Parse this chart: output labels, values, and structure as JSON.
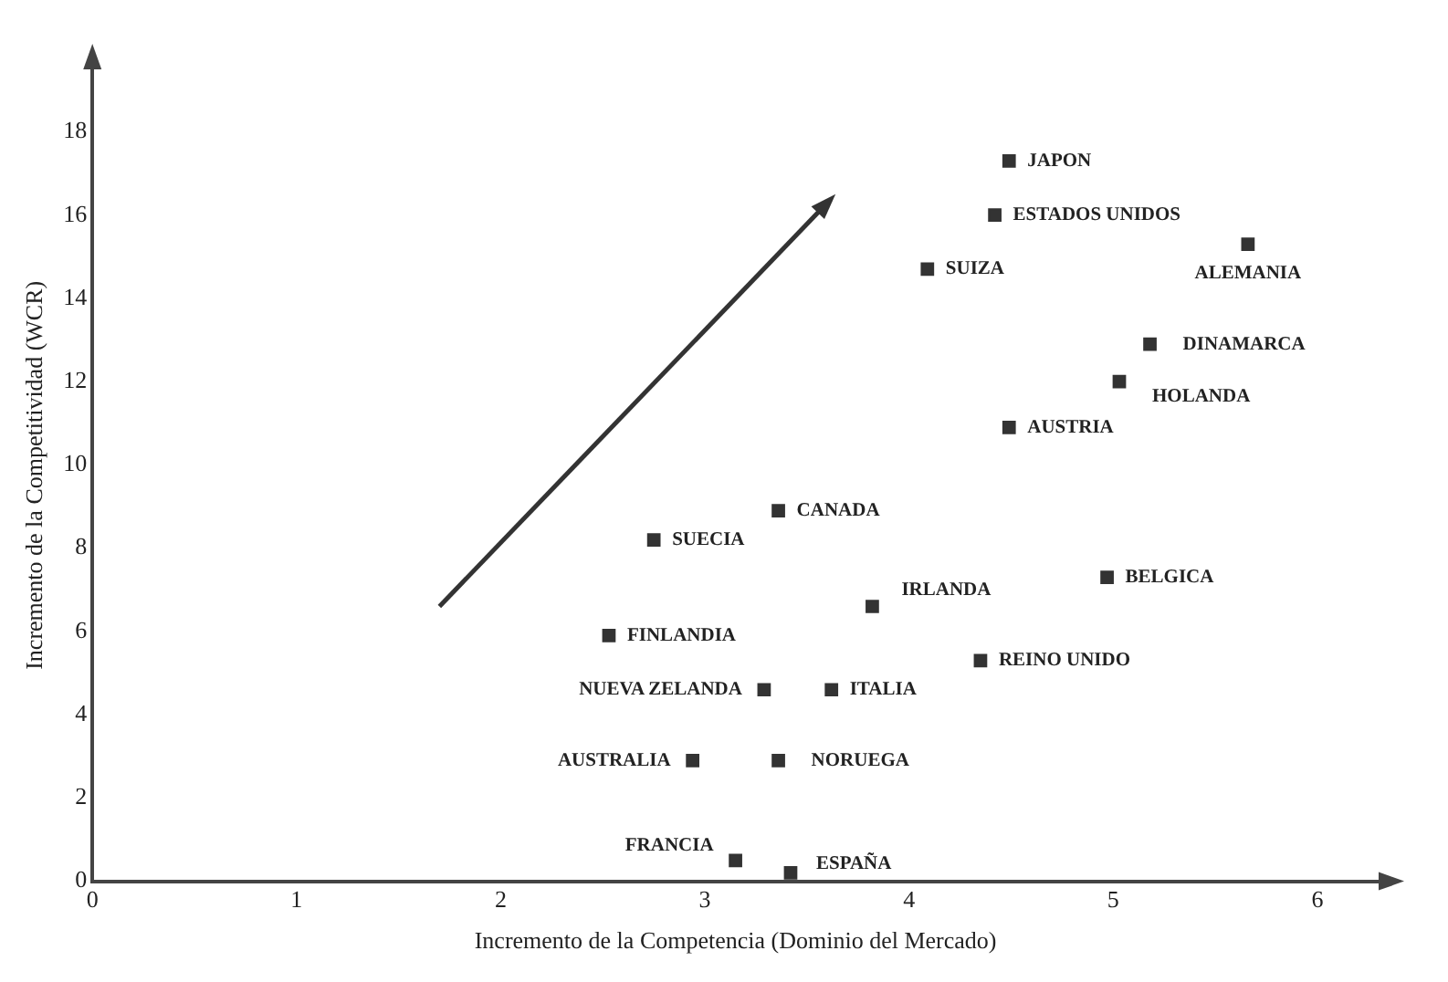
{
  "chart_data": {
    "type": "scatter",
    "xlabel": "Incremento de la Competencia (Dominio del Mercado)",
    "ylabel": "Incremento de la Competitividad (WCR)",
    "xlim": [
      0,
      6.3
    ],
    "xticks": [
      0,
      1,
      2,
      3,
      4,
      5,
      6
    ],
    "ylim": [
      0,
      19.5
    ],
    "yticks": [
      0,
      2,
      4,
      6,
      8,
      10,
      12,
      14,
      16,
      18
    ],
    "grid": false,
    "legend": false,
    "marker": "square",
    "series": [
      {
        "name": "JAPON",
        "color": "#333333",
        "x": [
          4.49
        ],
        "values": [
          17.3
        ]
      },
      {
        "name": "ESTADOS UNIDOS",
        "color": "#333333",
        "x": [
          4.42
        ],
        "values": [
          16.0
        ]
      },
      {
        "name": "ALEMANIA",
        "color": "#333333",
        "x": [
          5.66
        ],
        "values": [
          15.3
        ]
      },
      {
        "name": "SUIZA",
        "color": "#333333",
        "x": [
          4.09
        ],
        "values": [
          14.7
        ]
      },
      {
        "name": "DINAMARCA",
        "color": "#333333",
        "x": [
          5.18
        ],
        "values": [
          12.9
        ]
      },
      {
        "name": "HOLANDA",
        "color": "#333333",
        "x": [
          5.03
        ],
        "values": [
          12.0
        ]
      },
      {
        "name": "AUSTRIA",
        "color": "#333333",
        "x": [
          4.49
        ],
        "values": [
          10.9
        ]
      },
      {
        "name": "CANADA",
        "color": "#333333",
        "x": [
          3.36
        ],
        "values": [
          8.9
        ]
      },
      {
        "name": "SUECIA",
        "color": "#333333",
        "x": [
          2.75
        ],
        "values": [
          8.2
        ]
      },
      {
        "name": "BELGICA",
        "color": "#333333",
        "x": [
          4.97
        ],
        "values": [
          7.3
        ]
      },
      {
        "name": "IRLANDA",
        "color": "#333333",
        "x": [
          3.82
        ],
        "values": [
          6.6
        ]
      },
      {
        "name": "FINLANDIA",
        "color": "#333333",
        "x": [
          2.53
        ],
        "values": [
          5.9
        ]
      },
      {
        "name": "REINO UNIDO",
        "color": "#333333",
        "x": [
          4.35
        ],
        "values": [
          5.3
        ]
      },
      {
        "name": "NUEVA ZELANDA",
        "color": "#333333",
        "x": [
          3.29
        ],
        "values": [
          4.6
        ]
      },
      {
        "name": "ITALIA",
        "color": "#333333",
        "x": [
          3.62
        ],
        "values": [
          4.6
        ]
      },
      {
        "name": "AUSTRALIA",
        "color": "#333333",
        "x": [
          2.94
        ],
        "values": [
          2.9
        ]
      },
      {
        "name": "NORUEGA",
        "color": "#333333",
        "x": [
          3.36
        ],
        "values": [
          2.9
        ]
      },
      {
        "name": "FRANCIA",
        "color": "#333333",
        "x": [
          3.15
        ],
        "values": [
          0.5
        ]
      },
      {
        "name": "ESPAÑA",
        "color": "#333333",
        "x": [
          3.42
        ],
        "values": [
          0.2
        ]
      }
    ]
  }
}
